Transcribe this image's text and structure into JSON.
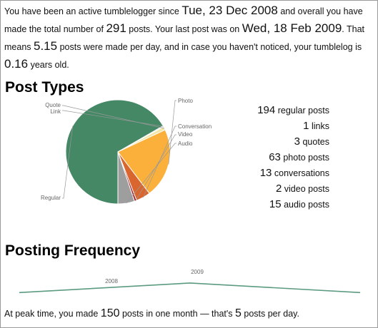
{
  "intro": {
    "p1": "You have been an active tumblelogger since ",
    "since_date": "Tue, 23 Dec 2008",
    "p2": " and overall you have made the total number of ",
    "total_posts": "291",
    "p3": " posts. Your last post was on ",
    "last_date": "Wed, 18 Feb 2009",
    "p4": ". That means ",
    "per_day": "5.15",
    "p5": " posts were made per day, and in case you haven't noticed, your tumblelog is ",
    "age": "0.16",
    "p6": " years old."
  },
  "post_types": {
    "heading": "Post Types",
    "chart_data": {
      "type": "pie",
      "slices": [
        {
          "label": "Regular",
          "value": 194,
          "color": "#458866"
        },
        {
          "label": "Link",
          "value": 1,
          "color": "#dedede"
        },
        {
          "label": "Quote",
          "value": 3,
          "color": "#f2e6a6"
        },
        {
          "label": "Photo",
          "value": 63,
          "color": "#fbb03b"
        },
        {
          "label": "Conversation",
          "value": 13,
          "color": "#d9662e"
        },
        {
          "label": "Video",
          "value": 2,
          "color": "#a31f29"
        },
        {
          "label": "Audio",
          "value": 15,
          "color": "#9e9e9e"
        }
      ]
    },
    "stats": [
      {
        "count": "194",
        "label": "regular posts"
      },
      {
        "count": "1",
        "label": "links"
      },
      {
        "count": "3",
        "label": "quotes"
      },
      {
        "count": "63",
        "label": "photo posts"
      },
      {
        "count": "13",
        "label": "conversations"
      },
      {
        "count": "2",
        "label": "video posts"
      },
      {
        "count": "15",
        "label": "audio posts"
      }
    ]
  },
  "frequency": {
    "heading": "Posting Frequency",
    "chart_data": {
      "type": "line",
      "x": [
        "2008",
        "2009",
        ""
      ],
      "values": [
        0,
        150,
        0
      ],
      "ylim": [
        -120,
        160
      ],
      "color": "#5b9b80"
    },
    "peak": {
      "p1": "At peak time, you made ",
      "monthly": "150",
      "p2": " posts in one month — that's ",
      "daily": "5",
      "p3": " posts per day."
    }
  }
}
